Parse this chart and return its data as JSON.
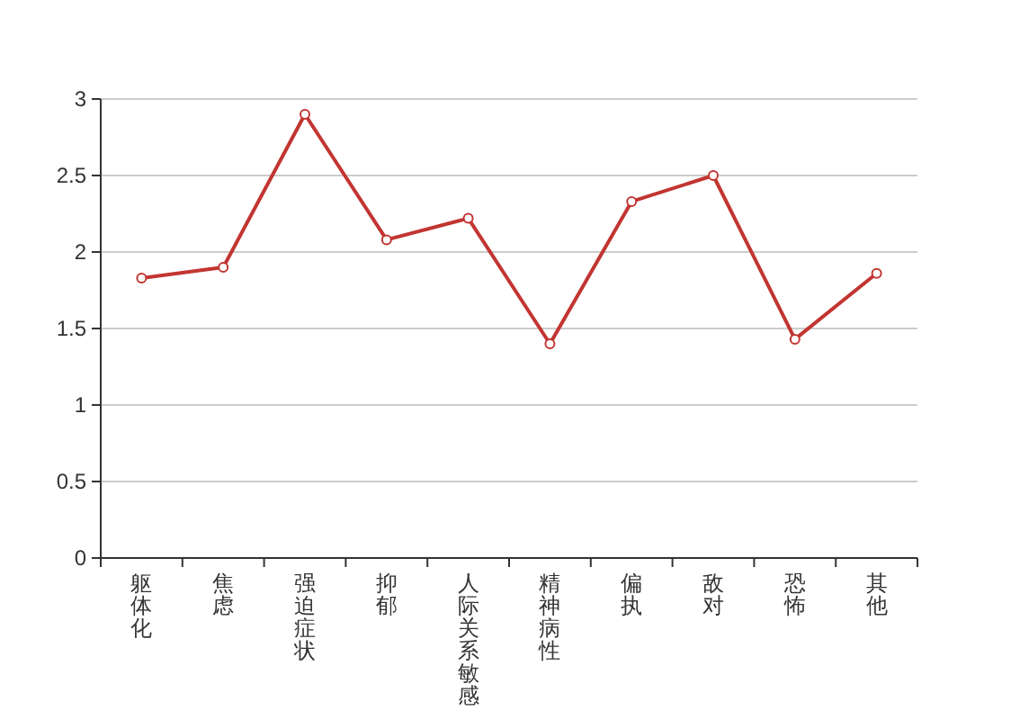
{
  "chart_data": {
    "type": "line",
    "categories": [
      "躯体化",
      "焦虑",
      "强迫症状",
      "抑郁",
      "人际关系敏感",
      "精神病性",
      "偏执",
      "敌对",
      "恐怖",
      "其他"
    ],
    "series": [
      {
        "color": "#c23531",
        "values": [
          1.83,
          1.9,
          2.9,
          2.08,
          2.22,
          1.4,
          2.33,
          2.5,
          1.43,
          1.86
        ]
      }
    ],
    "ylim": [
      0,
      3
    ],
    "yticks": [
      0,
      0.5,
      1,
      1.5,
      2,
      2.5,
      3
    ],
    "grid": "y",
    "marker": "circle",
    "line_style": "solid"
  }
}
